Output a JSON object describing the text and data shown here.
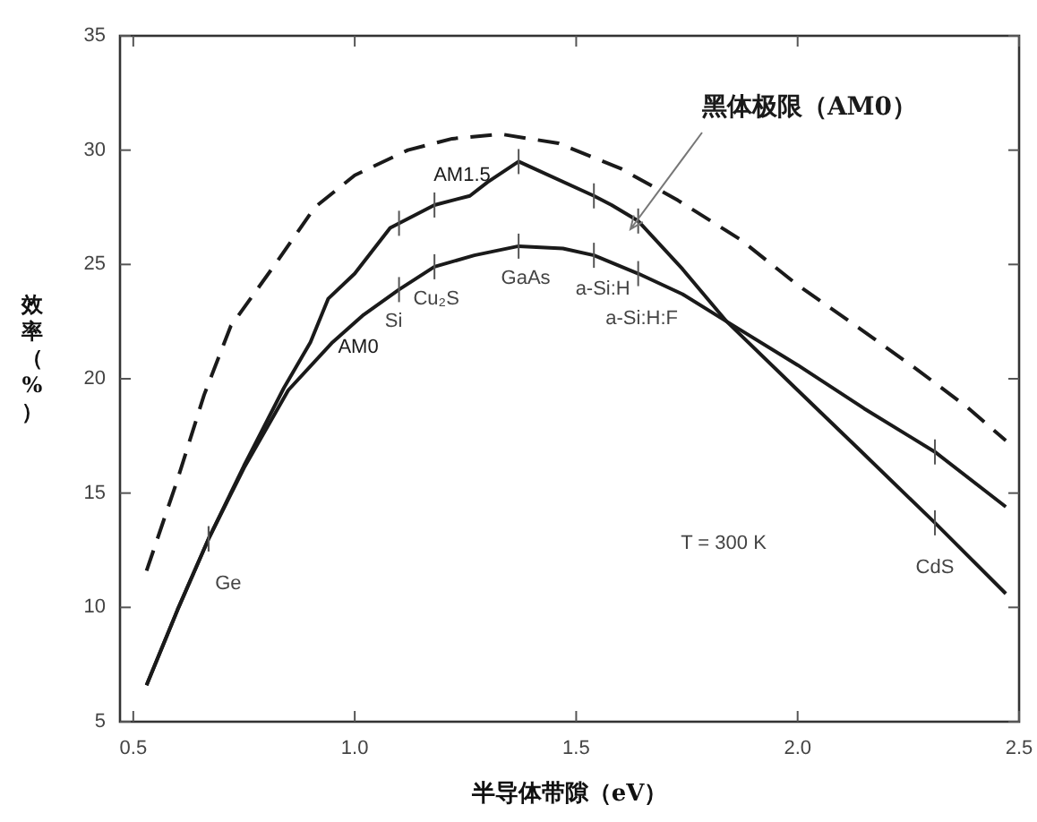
{
  "chart_data": {
    "type": "line",
    "xlabel": "半导体带隙（eV）",
    "ylabel": "效率（%）",
    "xlim": [
      0.47,
      2.5
    ],
    "ylim": [
      5,
      35
    ],
    "xticks": [
      0.5,
      {
        "value": 1,
        "label": "1.0"
      },
      1.5,
      {
        "value": 2,
        "label": "2.0"
      },
      2.5
    ],
    "yticks": [
      5,
      10,
      15,
      20,
      25,
      30,
      35
    ],
    "grid": false,
    "legend": false,
    "marker": "none",
    "series": [
      {
        "name": "黑体极限（AM0）",
        "color": "#1a1a1a",
        "line_style": "dashed",
        "x": [
          0.53,
          0.6,
          0.66,
          0.72,
          0.82,
          0.91,
          1.0,
          1.12,
          1.22,
          1.33,
          1.46,
          1.6,
          1.73,
          1.87,
          2.0,
          2.14,
          2.27,
          2.38,
          2.47
        ],
        "values": [
          11.6,
          15.6,
          19.3,
          22.3,
          25,
          27.5,
          28.9,
          30,
          30.5,
          30.7,
          30.3,
          29.2,
          27.8,
          26.1,
          24.1,
          22.2,
          20.4,
          18.8,
          17.3
        ]
      },
      {
        "name": "AM1.5",
        "color": "#1a1a1a",
        "line_style": "solid",
        "x": [
          0.53,
          0.6,
          0.67,
          0.75,
          0.84,
          0.9,
          0.94,
          1.0,
          1.08,
          1.18,
          1.26,
          1.3,
          1.37,
          1.54,
          1.58,
          1.64,
          1.74,
          1.84,
          2.0,
          2.15,
          2.31,
          2.47
        ],
        "values": [
          6.6,
          9.9,
          13.0,
          16.2,
          19.6,
          21.6,
          23.5,
          24.6,
          26.6,
          27.6,
          28.0,
          28.6,
          29.5,
          28.0,
          27.6,
          26.9,
          24.8,
          22.5,
          19.5,
          16.7,
          13.7,
          10.6
        ]
      },
      {
        "name": "AM0",
        "color": "#1a1a1a",
        "line_style": "solid",
        "x": [
          0.53,
          0.6,
          0.67,
          0.75,
          0.85,
          0.95,
          1.02,
          1.1,
          1.18,
          1.27,
          1.37,
          1.47,
          1.54,
          1.64,
          1.74,
          1.84,
          2.0,
          2.15,
          2.31,
          2.47
        ],
        "values": [
          6.6,
          9.9,
          13.0,
          16.1,
          19.5,
          21.6,
          22.8,
          23.9,
          24.9,
          25.4,
          25.8,
          25.7,
          25.4,
          24.6,
          23.7,
          22.5,
          20.6,
          18.7,
          16.8,
          14.4
        ]
      }
    ],
    "annotations": [
      {
        "text": "Ge",
        "x": 0.67,
        "y": 13.0
      },
      {
        "text": "Si",
        "x": 1.1,
        "y": 23.9
      },
      {
        "text": "Cu₂S",
        "x": 1.18,
        "y": 24.9
      },
      {
        "text": "GaAs",
        "x": 1.37,
        "y": 25.8
      },
      {
        "text": "a-Si:H",
        "x": 1.54,
        "y": 25.4
      },
      {
        "text": "a-Si:H:F",
        "x": 1.64,
        "y": 24.6
      },
      {
        "text": "CdS",
        "x": 2.31,
        "y": 13.7
      },
      "T = 300 K"
    ]
  }
}
